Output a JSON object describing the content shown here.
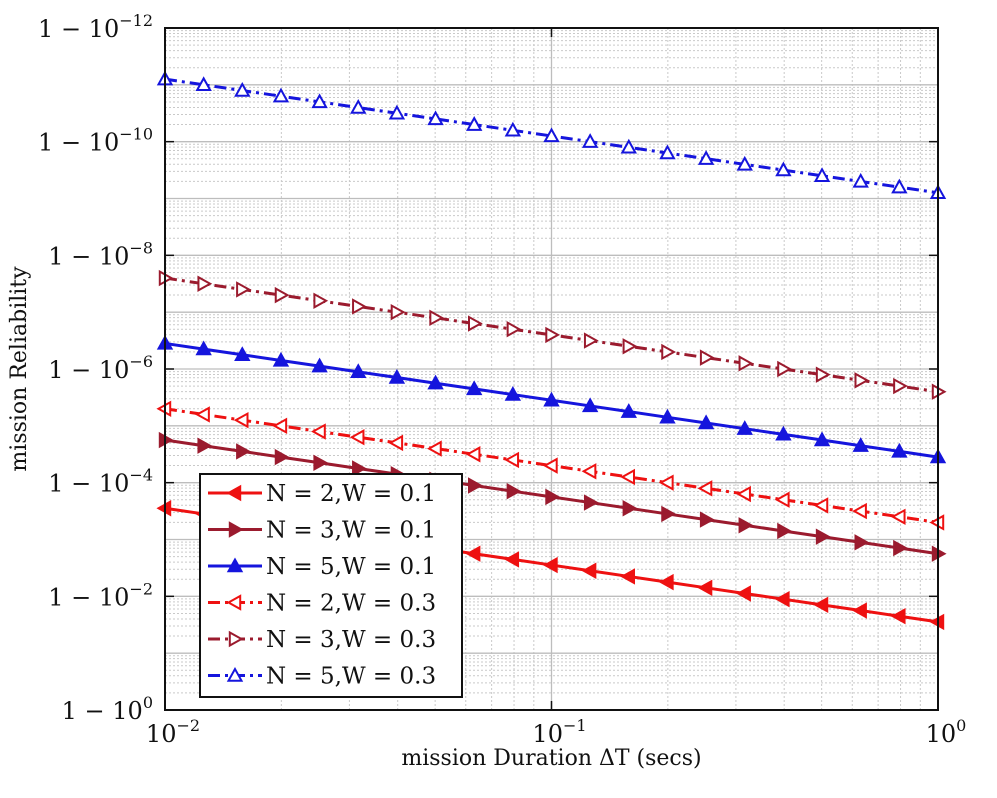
{
  "chart_data": {
    "type": "line",
    "title": "",
    "xlabel": "mission Duration ΔT (secs)",
    "ylabel": "mission Reliability",
    "xscale": "log",
    "yscale": "log-unreliability",
    "xlim": [
      0.01,
      1
    ],
    "ylim_exponent": [
      0,
      -12
    ],
    "grid": true,
    "legend_position": "lower-left",
    "x_ticks": [
      {
        "value": 0.01,
        "base": "10",
        "exp": "−2"
      },
      {
        "value": 0.1,
        "base": "10",
        "exp": "−1"
      },
      {
        "value": 1,
        "base": "10",
        "exp": "0"
      }
    ],
    "y_ticks": [
      {
        "exponent": 0,
        "prefix": "1 − 10",
        "exp": "0"
      },
      {
        "exponent": -2,
        "prefix": "1 − 10",
        "exp": "−2"
      },
      {
        "exponent": -4,
        "prefix": "1 − 10",
        "exp": "−4"
      },
      {
        "exponent": -6,
        "prefix": "1 − 10",
        "exp": "−6"
      },
      {
        "exponent": -8,
        "prefix": "1 − 10",
        "exp": "−8"
      },
      {
        "exponent": -10,
        "prefix": "1 − 10",
        "exp": "−10"
      },
      {
        "exponent": -12,
        "prefix": "1 − 10",
        "exp": "−12"
      }
    ],
    "n_points": 21,
    "series": [
      {
        "name": "N = 2,W = 0.1",
        "color": "#ee1111",
        "dash": "solid",
        "marker": "triangle-left",
        "filled": true,
        "unreliability_log10_start": -3.55,
        "unreliability_log10_end": -1.55
      },
      {
        "name": "N = 3,W = 0.1",
        "color": "#9b1b2e",
        "dash": "solid",
        "marker": "triangle-right",
        "filled": true,
        "unreliability_log10_start": -4.75,
        "unreliability_log10_end": -2.75
      },
      {
        "name": "N = 5,W = 0.1",
        "color": "#1515dd",
        "dash": "solid",
        "marker": "triangle-up",
        "filled": true,
        "unreliability_log10_start": -6.45,
        "unreliability_log10_end": -4.45
      },
      {
        "name": "N = 2,W = 0.3",
        "color": "#ee1111",
        "dash": "dashdot",
        "marker": "triangle-left",
        "filled": false,
        "unreliability_log10_start": -5.3,
        "unreliability_log10_end": -3.3
      },
      {
        "name": "N = 3,W = 0.3",
        "color": "#9b1b2e",
        "dash": "dashdot",
        "marker": "triangle-right",
        "filled": false,
        "unreliability_log10_start": -7.6,
        "unreliability_log10_end": -5.6
      },
      {
        "name": "N = 5,W = 0.3",
        "color": "#1515dd",
        "dash": "dashdot",
        "marker": "triangle-up",
        "filled": false,
        "unreliability_log10_start": -11.1,
        "unreliability_log10_end": -9.1
      }
    ]
  }
}
